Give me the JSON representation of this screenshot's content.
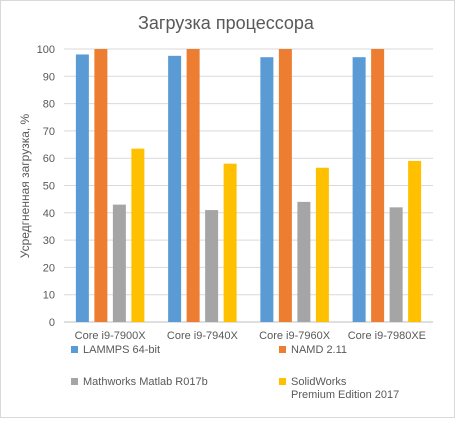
{
  "chart_data": {
    "type": "bar",
    "title": "Загрузка процессора",
    "xlabel": "",
    "ylabel": "Усредгненная загрузка, %",
    "ylim": [
      0,
      100
    ],
    "ytick_step": 10,
    "grid": true,
    "legend_position": "bottom",
    "categories": [
      "Core i9-7900X",
      "Core i9-7940X",
      "Core i9-7960X",
      "Core i9-7980XE"
    ],
    "series": [
      {
        "name": "LAMMPS 64-bit",
        "color": "#5b9bd5",
        "values": [
          98,
          97.5,
          97,
          97
        ]
      },
      {
        "name": "NAMD 2.11",
        "color": "#ed7d31",
        "values": [
          100,
          100,
          100,
          100
        ]
      },
      {
        "name": "Mathworks Matlab R017b",
        "color": "#a5a5a5",
        "values": [
          43,
          41,
          44,
          42
        ]
      },
      {
        "name_lines": [
          "SolidWorks",
          "Premium Edition 2017"
        ],
        "color": "#ffc000",
        "values": [
          63.5,
          58,
          56.5,
          59
        ]
      }
    ]
  }
}
